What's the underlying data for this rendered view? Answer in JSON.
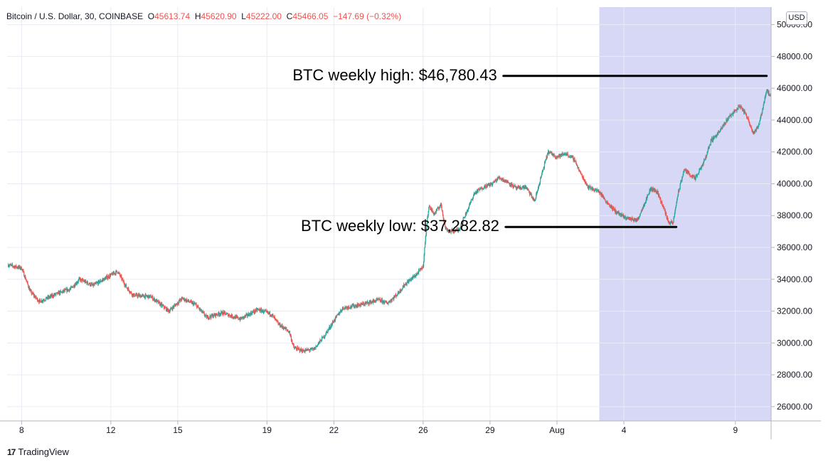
{
  "header": {
    "symbol": "Bitcoin / U.S. Dollar, 30, COINBASE",
    "o_label": "O",
    "o_value": "45613.74",
    "h_label": "H",
    "h_value": "45620.90",
    "l_label": "L",
    "l_value": "45222.00",
    "c_label": "C",
    "c_value": "45466.05",
    "change": "−147.69 (−0.32%)"
  },
  "currency_button": "USD",
  "brand": {
    "logo_text": "TradingView"
  },
  "colors": {
    "up": "#26a69a",
    "down": "#ef5350",
    "highlight": "#d6d8f6",
    "grid": "#e8ecf2",
    "annotation_line": "#000000"
  },
  "chart_data": {
    "type": "candlestick",
    "title": "Bitcoin / U.S. Dollar, 30, COINBASE",
    "xlabel": "",
    "ylabel": "USD",
    "ylim": [
      25100,
      51100
    ],
    "y_ticks": [
      "26000.00",
      "28000.00",
      "30000.00",
      "32000.00",
      "34000.00",
      "36000.00",
      "38000.00",
      "40000.00",
      "42000.00",
      "44000.00",
      "46000.00",
      "48000.00",
      "50000.00"
    ],
    "y_tick_values": [
      26000,
      28000,
      30000,
      32000,
      34000,
      36000,
      38000,
      40000,
      42000,
      44000,
      46000,
      48000,
      50000
    ],
    "x_tick_labels": [
      "8",
      "12",
      "15",
      "19",
      "22",
      "26",
      "29",
      "Aug",
      "4",
      "9"
    ],
    "x_tick_days": [
      8,
      12,
      15,
      19,
      22,
      26,
      29,
      32,
      35,
      40
    ],
    "x_range_days": [
      7.35,
      41.6
    ],
    "highlight_region_days": [
      33.9,
      41.6
    ],
    "price_path": [
      [
        7.4,
        34900
      ],
      [
        8.0,
        34700
      ],
      [
        8.4,
        33200
      ],
      [
        8.8,
        32600
      ],
      [
        9.6,
        33100
      ],
      [
        10.2,
        33400
      ],
      [
        10.6,
        34000
      ],
      [
        11.2,
        33600
      ],
      [
        11.8,
        34100
      ],
      [
        12.3,
        34500
      ],
      [
        12.7,
        33500
      ],
      [
        13.0,
        33000
      ],
      [
        13.8,
        32900
      ],
      [
        14.6,
        32000
      ],
      [
        15.2,
        32800
      ],
      [
        15.8,
        32400
      ],
      [
        16.3,
        31600
      ],
      [
        17.0,
        31900
      ],
      [
        17.8,
        31500
      ],
      [
        18.6,
        32100
      ],
      [
        19.2,
        31800
      ],
      [
        19.5,
        31200
      ],
      [
        20.0,
        30700
      ],
      [
        20.2,
        29700
      ],
      [
        20.6,
        29500
      ],
      [
        21.1,
        29600
      ],
      [
        21.6,
        30500
      ],
      [
        22.0,
        31400
      ],
      [
        22.4,
        32200
      ],
      [
        23.2,
        32400
      ],
      [
        24.0,
        32700
      ],
      [
        24.4,
        32500
      ],
      [
        24.8,
        33000
      ],
      [
        25.2,
        33700
      ],
      [
        25.7,
        34300
      ],
      [
        26.0,
        34800
      ],
      [
        26.1,
        36500
      ],
      [
        26.25,
        38600
      ],
      [
        26.5,
        38100
      ],
      [
        26.8,
        38700
      ],
      [
        27.0,
        37200
      ],
      [
        27.2,
        37000
      ],
      [
        27.6,
        37100
      ],
      [
        28.0,
        38400
      ],
      [
        28.3,
        39400
      ],
      [
        28.7,
        39800
      ],
      [
        29.1,
        40000
      ],
      [
        29.4,
        40400
      ],
      [
        29.8,
        40100
      ],
      [
        30.2,
        39700
      ],
      [
        30.6,
        39800
      ],
      [
        31.0,
        38900
      ],
      [
        31.3,
        40500
      ],
      [
        31.6,
        42000
      ],
      [
        32.0,
        41700
      ],
      [
        32.4,
        41900
      ],
      [
        32.8,
        41500
      ],
      [
        33.0,
        40800
      ],
      [
        33.4,
        39800
      ],
      [
        33.9,
        39500
      ],
      [
        34.2,
        38900
      ],
      [
        34.6,
        38300
      ],
      [
        35.0,
        37900
      ],
      [
        35.3,
        37800
      ],
      [
        35.6,
        37700
      ],
      [
        35.9,
        38700
      ],
      [
        36.2,
        39700
      ],
      [
        36.5,
        39500
      ],
      [
        36.8,
        38400
      ],
      [
        37.0,
        37600
      ],
      [
        37.2,
        37500
      ],
      [
        37.4,
        39200
      ],
      [
        37.7,
        40900
      ],
      [
        38.2,
        40300
      ],
      [
        38.6,
        41400
      ],
      [
        38.9,
        42700
      ],
      [
        39.3,
        43300
      ],
      [
        39.7,
        44200
      ],
      [
        40.0,
        44600
      ],
      [
        40.2,
        44900
      ],
      [
        40.5,
        44300
      ],
      [
        40.8,
        43200
      ],
      [
        41.0,
        43500
      ],
      [
        41.2,
        44600
      ],
      [
        41.4,
        45900
      ],
      [
        41.6,
        45400
      ]
    ],
    "annotations": [
      {
        "label": "BTC weekly high: $46,780.43",
        "value": 46780.43,
        "from_day": 29.6,
        "to_day": 41.4
      },
      {
        "label": "BTC weekly low: $37,282.82",
        "value": 37282.82,
        "from_day": 29.7,
        "to_day": 37.35
      }
    ]
  }
}
